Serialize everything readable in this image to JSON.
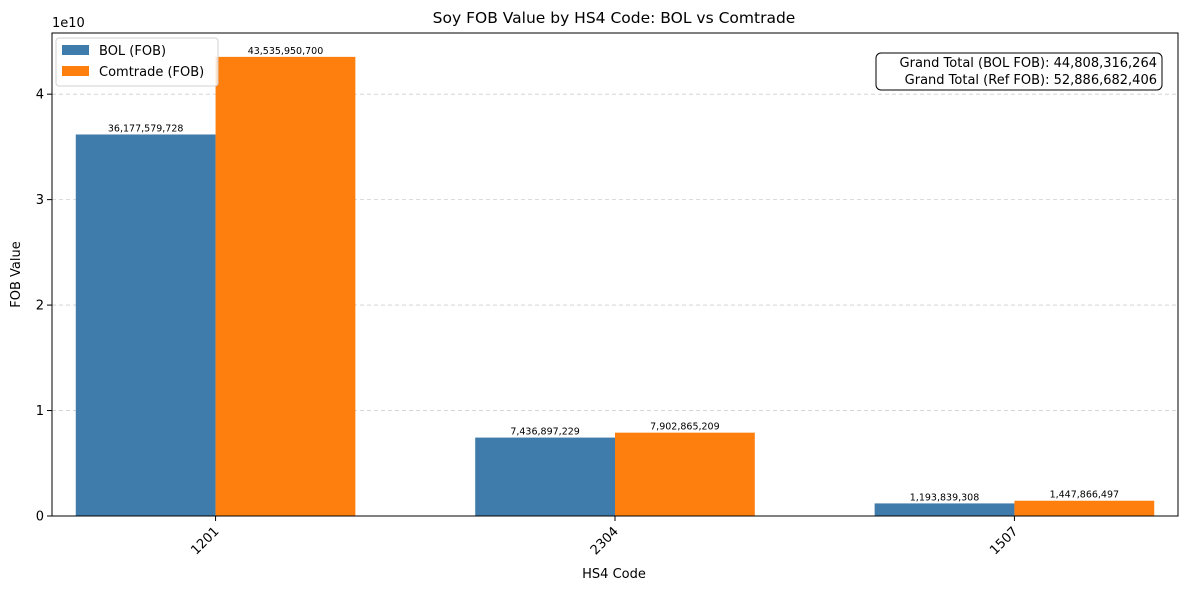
{
  "chart_data": {
    "type": "bar",
    "title": "Soy FOB Value by HS4 Code: BOL vs Comtrade",
    "xlabel": "HS4 Code",
    "ylabel": "FOB Value",
    "y_offset_label": "1e10",
    "ylim": [
      0,
      45800000000
    ],
    "yticks": [
      0,
      10000000000,
      20000000000,
      30000000000,
      40000000000
    ],
    "ytick_labels": [
      "0",
      "1",
      "2",
      "3",
      "4"
    ],
    "categories": [
      "1201",
      "2304",
      "1507"
    ],
    "series": [
      {
        "name": "BOL (FOB)",
        "color": "#3f7cac",
        "values": [
          36177579728,
          7436897229,
          1193839308
        ],
        "labels": [
          "36,177,579,728",
          "7,436,897,229",
          "1,193,839,308"
        ]
      },
      {
        "name": "Comtrade (FOB)",
        "color": "#ff7f0e",
        "values": [
          43535950700,
          7902865209,
          1447866497
        ],
        "labels": [
          "43,535,950,700",
          "7,902,865,209",
          "1,447,866,497"
        ]
      }
    ],
    "legend_position": "top-left",
    "grid": "y-dashed",
    "annotation": {
      "line1": "Grand Total (BOL FOB): 44,808,316,264",
      "line2": "Grand Total (Ref FOB): 52,886,682,406"
    }
  }
}
